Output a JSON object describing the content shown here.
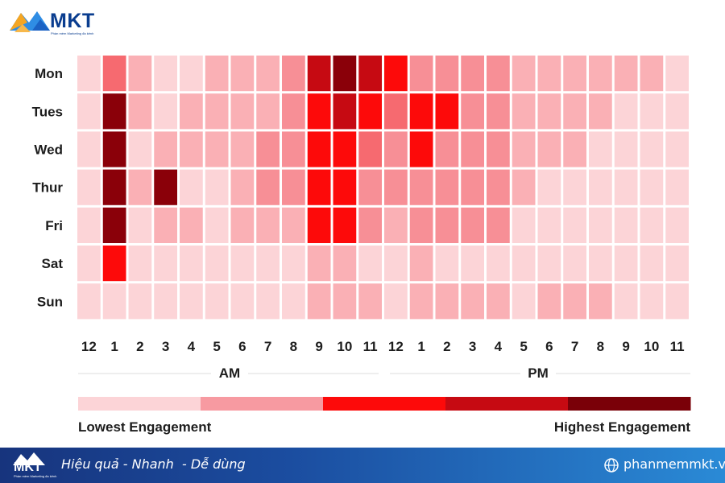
{
  "header": {
    "logo_text": "MKT",
    "logo_subtitle": "Phần mềm Marketing đa kênh"
  },
  "chart_data": {
    "type": "heatmap",
    "title": "",
    "rows": [
      "Mon",
      "Tues",
      "Wed",
      "Thur",
      "Fri",
      "Sat",
      "Sun"
    ],
    "columns": [
      "12",
      "1",
      "2",
      "3",
      "4",
      "5",
      "6",
      "7",
      "8",
      "9",
      "10",
      "11",
      "12",
      "1",
      "2",
      "3",
      "4",
      "5",
      "6",
      "7",
      "8",
      "9",
      "10",
      "11"
    ],
    "period_labels": [
      "AM",
      "PM"
    ],
    "scale_min": 1,
    "scale_max": 7,
    "values": [
      [
        1,
        4,
        2,
        1,
        1,
        2,
        2,
        2,
        3,
        6,
        7,
        6,
        5,
        3,
        3,
        3,
        3,
        2,
        2,
        2,
        2,
        2,
        2,
        1
      ],
      [
        1,
        7,
        2,
        1,
        2,
        2,
        2,
        2,
        3,
        5,
        6,
        5,
        4,
        5,
        5,
        3,
        3,
        2,
        2,
        2,
        2,
        1,
        1,
        1
      ],
      [
        1,
        7,
        1,
        2,
        2,
        2,
        2,
        3,
        3,
        5,
        5,
        4,
        3,
        5,
        3,
        3,
        3,
        2,
        2,
        2,
        1,
        1,
        1,
        1
      ],
      [
        1,
        7,
        2,
        7,
        1,
        1,
        2,
        3,
        3,
        5,
        5,
        3,
        3,
        3,
        3,
        3,
        3,
        2,
        1,
        1,
        1,
        1,
        1,
        1
      ],
      [
        1,
        7,
        1,
        2,
        2,
        1,
        2,
        2,
        2,
        5,
        5,
        3,
        2,
        3,
        3,
        3,
        3,
        1,
        1,
        1,
        1,
        1,
        1,
        1
      ],
      [
        1,
        5,
        1,
        1,
        1,
        1,
        1,
        1,
        1,
        2,
        2,
        1,
        1,
        2,
        1,
        1,
        1,
        1,
        1,
        1,
        1,
        1,
        1,
        1
      ],
      [
        1,
        1,
        1,
        1,
        1,
        1,
        1,
        1,
        1,
        2,
        2,
        2,
        1,
        2,
        2,
        2,
        2,
        1,
        2,
        2,
        2,
        1,
        1,
        1
      ]
    ],
    "colors": [
      "#fcd4d7",
      "#fab0b5",
      "#f78f96",
      "#f66a70",
      "#fd0a0a",
      "#c60a12",
      "#8a0009"
    ],
    "legend": {
      "colors": [
        "#fcd4d7",
        "#f79aa1",
        "#fd0a0a",
        "#c60a12",
        "#7a0008"
      ],
      "low_label": "Lowest Engagement",
      "high_label": "Highest Engagement"
    },
    "grid": true
  },
  "footer": {
    "logo_text": "MKT",
    "logo_subtitle": "Phần mềm Marketing đa kênh",
    "tagline": "Hiệu quả - Nhanh  - Dễ dùng",
    "website": "phanmemmkt.vn",
    "colors": {
      "start": "#17347d",
      "end": "#2a8ad6"
    }
  }
}
